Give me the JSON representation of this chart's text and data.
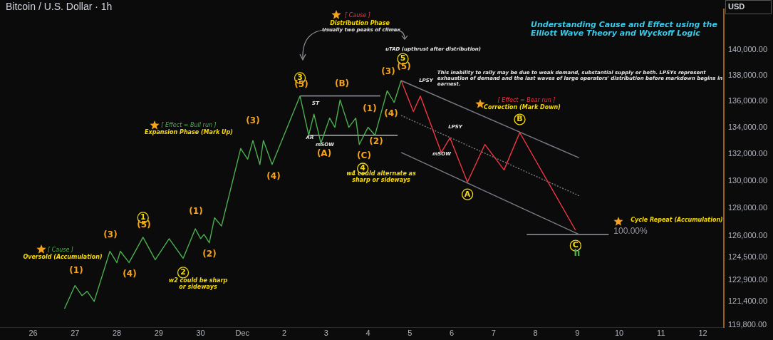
{
  "chart_data": {
    "type": "line",
    "title": "Bitcoin / U.S. Dollar · 1h",
    "subtitle": "Understanding Cause and Effect using the Elliott Wave Theory and Wyckoff Logic",
    "ylabel": "USD",
    "log": "y",
    "legend": false,
    "marker": "none",
    "xlim": [
      "--11-25T05:00",
      "--12-12T12:00"
    ],
    "xticks": [
      {
        "value": "--11-26",
        "label": "26"
      },
      {
        "value": "--11-27",
        "label": "27"
      },
      {
        "value": "--11-28",
        "label": "28"
      },
      {
        "value": "--11-29",
        "label": "29"
      },
      {
        "value": "--11-30",
        "label": "30"
      },
      {
        "value": "--12-01",
        "label": "Dec"
      },
      {
        "value": "--12-02",
        "label": "2"
      },
      {
        "value": "--12-03",
        "label": "3"
      },
      {
        "value": "--12-04",
        "label": "4"
      },
      {
        "value": "--12-05",
        "label": "5"
      },
      {
        "value": "--12-06",
        "label": "6"
      },
      {
        "value": "--12-07",
        "label": "7"
      },
      {
        "value": "--12-08",
        "label": "8"
      },
      {
        "value": "--12-09",
        "label": "9"
      },
      {
        "value": "--12-10",
        "label": "10"
      },
      {
        "value": "--12-11",
        "label": "11"
      },
      {
        "value": "--12-12",
        "label": "12"
      }
    ],
    "ylim": [
      119600,
      143300
    ],
    "yticks": [
      {
        "value": 119800,
        "label": "119,800.00"
      },
      {
        "value": 121400,
        "label": "121,400.00"
      },
      {
        "value": 122900,
        "label": "122,900.00"
      },
      {
        "value": 124500,
        "label": "124,500.00"
      },
      {
        "value": 126000,
        "label": "126,000.00"
      },
      {
        "value": 128000,
        "label": "128,000.00"
      },
      {
        "value": 130000,
        "label": "130,000.00"
      },
      {
        "value": 132000,
        "label": "132,000.00"
      },
      {
        "value": 134000,
        "label": "134,000.00"
      },
      {
        "value": 136000,
        "label": "136,000.00"
      },
      {
        "value": 138000,
        "label": "138,000.00"
      },
      {
        "value": 140000,
        "label": "140,000.00"
      }
    ],
    "series": [
      {
        "color": "#4caf50",
        "x": [
          "--11-26T18:00",
          "--11-27T00:00",
          "--11-27T04:00",
          "--11-27T07:00",
          "--11-27T11:00",
          "--11-27T20:00",
          "--11-28T00:00",
          "--11-28T02:00",
          "--11-28T07:00",
          "--11-28T15:00",
          "--11-28T22:00",
          "--11-29T06:00",
          "--11-29T14:00",
          "--11-29T21:00",
          "--11-30T00:00",
          "--11-30T02:00",
          "--11-30T05:00",
          "--11-30T08:00",
          "--11-30T12:00",
          "--11-30T23:00",
          "--12-01T03:00",
          "--12-01T06:00",
          "--12-01T10:00",
          "--12-01T12:00",
          "--12-01T17:00",
          "--12-02T09:00",
          "--12-02T14:00",
          "--12-02T17:00",
          "--12-02T21:00",
          "--12-03T02:00",
          "--12-03T05:00",
          "--12-03T08:00",
          "--12-03T13:00",
          "--12-03T17:00",
          "--12-03T19:00",
          "--12-04T00:00",
          "--12-04T04:00",
          "--12-04T11:00",
          "--12-04T15:00",
          "--12-04T19:00"
        ],
        "values": [
          120900,
          122500,
          121800,
          122100,
          121400,
          124900,
          124100,
          124900,
          124100,
          125900,
          124300,
          125800,
          124400,
          126500,
          125800,
          126100,
          125500,
          127300,
          126700,
          132400,
          131600,
          133000,
          131200,
          133000,
          131200,
          136400,
          133400,
          135000,
          132800,
          134700,
          134000,
          136100,
          134000,
          134700,
          132700,
          134000,
          133400,
          136800,
          135900,
          137600
        ]
      },
      {
        "color": "#f23645",
        "x": [
          "--12-04T19:00",
          "--12-05T02:00",
          "--12-05T06:00",
          "--12-05T18:00",
          "--12-05T23:00",
          "--12-06T09:00",
          "--12-06T19:00",
          "--12-07T06:00",
          "--12-07T15:00",
          "--12-08T23:00"
        ],
        "values": [
          137600,
          135200,
          136400,
          132100,
          133200,
          129900,
          132700,
          130800,
          133600,
          126400
        ]
      },
      {
        "color": "#787b86",
        "x": [
          "--12-04T19:00",
          "--12-09T01:00"
        ],
        "values": [
          137600,
          131700
        ]
      },
      {
        "color": "#787b86",
        "line_style": "dotted",
        "x": [
          "--12-04T19:00",
          "--12-09T01:00"
        ],
        "values": [
          134900,
          128900
        ]
      },
      {
        "color": "#787b86",
        "x": [
          "--12-04T19:00",
          "--12-09T01:00"
        ],
        "values": [
          132100,
          126100
        ]
      },
      {
        "color": "#b2b5be",
        "x": [
          "--12-02T09:00",
          "--12-04T07:00"
        ],
        "values": [
          136400,
          136400
        ]
      },
      {
        "color": "#b2b5be",
        "x": [
          "--12-02T14:00",
          "--12-04T17:00"
        ],
        "values": [
          133400,
          133400
        ]
      },
      {
        "color": "#b2b5be",
        "x": [
          "--12-07T19:00",
          "--12-09T18:00"
        ],
        "values": [
          126100,
          126100
        ]
      }
    ],
    "annotations": [
      "(1)",
      "(3)",
      "(4)",
      {
        "text": "1",
        "x": "--11-28T15:00",
        "y": 127300
      },
      "(5)",
      "(1)",
      "(2)",
      {
        "text": "2",
        "x": "--11-29T14:00",
        "y": 123400
      },
      "w2 could be sharp or sideways",
      "(3)",
      "(4)",
      "[ Cause ]",
      "Oversold (Accumulation)",
      "[ Effect = Bull run ]",
      "Expansion Phase (Mark Up)",
      {
        "text": "3",
        "x": "--12-02T09:00",
        "y": 137800
      },
      "(5)",
      "(B)",
      "ST",
      "AR",
      "mSOW",
      "(A)",
      "(1)",
      "(2)",
      "(C)",
      {
        "text": "4",
        "x": "--12-03T21:00",
        "y": 130900
      },
      "w4 could alternate as sharp or sideways",
      "(3)",
      "(4)",
      {
        "text": "5",
        "x": "--12-04T20:00",
        "y": 139300
      },
      "(5)",
      "uTAD (upthrust after distribution)",
      "[ Cause ]",
      "Distribution Phase",
      "Usually two peaks of climax",
      "LPSY",
      "LPSY",
      "mSOW",
      "This inability to rally may be due to weak demand, substantial supply or both. LPSYs represent exhaustion of demand and the last waves of large operators' distribution before markdown begins in earnest.",
      "[ Effect = Bear run ]",
      "Correction (Mark Down)",
      {
        "text": "B",
        "x": "--12-07T15:00",
        "y": 134600
      },
      {
        "text": "A",
        "x": "--12-06T09:00",
        "y": 129000
      },
      "100.00%",
      "Cycle Repeat (Accumulation)",
      {
        "text": "C",
        "x": "--12-08T23:00",
        "y": 125300
      },
      "ii"
    ]
  }
}
